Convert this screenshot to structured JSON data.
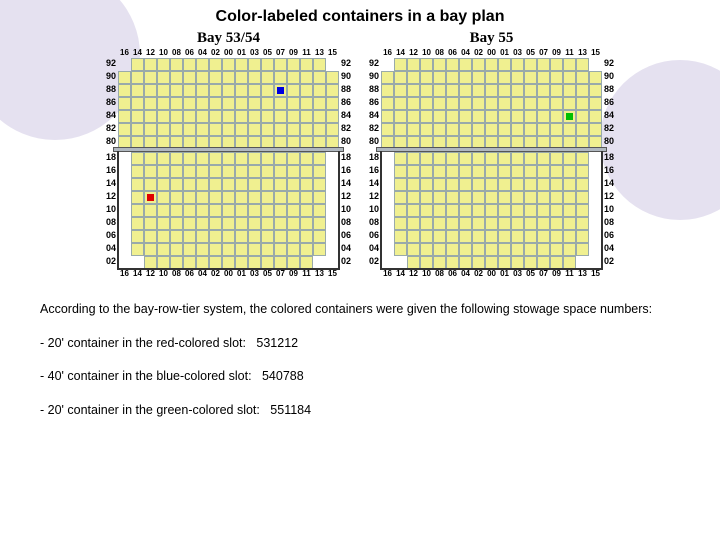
{
  "title": "Color-labeled containers in a bay plan",
  "intro": "According to the bay-row-tier system, the colored containers were given the following stowage space numbers:",
  "items": [
    {
      "label": "- 20' container in the red-colored slot:",
      "code": "531212"
    },
    {
      "label": "- 40' container in the blue-colored slot:",
      "code": "540788"
    },
    {
      "label": "- 20' container in the green-colored slot:",
      "code": "551184"
    }
  ],
  "bays": [
    {
      "title": "Bay 53/54",
      "cols": [
        "16",
        "14",
        "12",
        "10",
        "08",
        "06",
        "04",
        "02",
        "00",
        "01",
        "03",
        "05",
        "07",
        "09",
        "11",
        "13",
        "15"
      ],
      "deckTiers": [
        "92",
        "90",
        "88",
        "86",
        "84",
        "82",
        "80"
      ],
      "holdTiers": [
        "18",
        "16",
        "14",
        "12",
        "10",
        "08",
        "06",
        "04",
        "02"
      ],
      "cellColor": "#f0f090",
      "gridColor": "#99aa99",
      "markers": [
        {
          "area": "deck",
          "tier": "88",
          "col": "07",
          "color": "#0000e0"
        },
        {
          "area": "hold",
          "tier": "12",
          "col": "12",
          "color": "#e00000"
        }
      ],
      "deckShape": {
        "rows": 7,
        "skipLeft": [
          1,
          0,
          0,
          0,
          0,
          0,
          0
        ],
        "skipRight": [
          1,
          0,
          0,
          0,
          0,
          0,
          0
        ]
      },
      "holdShape": {
        "rows": 9,
        "skipLeft": [
          1,
          1,
          1,
          1,
          1,
          1,
          1,
          1,
          2
        ],
        "skipRight": [
          1,
          1,
          1,
          1,
          1,
          1,
          1,
          1,
          2
        ]
      }
    },
    {
      "title": "Bay 55",
      "cols": [
        "16",
        "14",
        "12",
        "10",
        "08",
        "06",
        "04",
        "02",
        "00",
        "01",
        "03",
        "05",
        "07",
        "09",
        "11",
        "13",
        "15"
      ],
      "deckTiers": [
        "92",
        "90",
        "88",
        "86",
        "84",
        "82",
        "80"
      ],
      "holdTiers": [
        "18",
        "16",
        "14",
        "12",
        "10",
        "08",
        "06",
        "04",
        "02"
      ],
      "cellColor": "#f0f090",
      "gridColor": "#99aa99",
      "markers": [
        {
          "area": "deck",
          "tier": "84",
          "col": "11",
          "color": "#00c000"
        }
      ],
      "deckShape": {
        "rows": 7,
        "skipLeft": [
          1,
          0,
          0,
          0,
          0,
          0,
          0
        ],
        "skipRight": [
          1,
          0,
          0,
          0,
          0,
          0,
          0
        ]
      },
      "holdShape": {
        "rows": 9,
        "skipLeft": [
          1,
          1,
          1,
          1,
          1,
          1,
          1,
          1,
          2
        ],
        "skipRight": [
          1,
          1,
          1,
          1,
          1,
          1,
          1,
          1,
          2
        ]
      }
    }
  ],
  "colors": {
    "deckHatch": "#b0b8c0",
    "hullOutline": "#404040",
    "bgCircle": "#e5e1f0"
  }
}
